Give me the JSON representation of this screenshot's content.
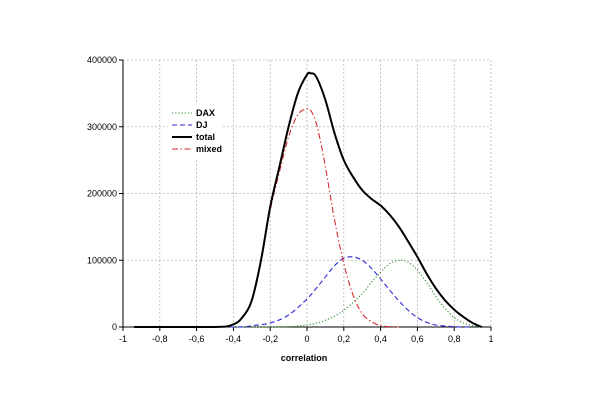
{
  "chart_data": {
    "type": "line",
    "title": "",
    "xlabel": "correlation",
    "ylabel": "",
    "xlim": [
      -1,
      1
    ],
    "ylim": [
      0,
      400000
    ],
    "x_ticks": [
      -1,
      -0.8,
      -0.6,
      -0.4,
      -0.2,
      0,
      0.2,
      0.4,
      0.6,
      0.8,
      1
    ],
    "x_tick_labels": [
      "-1",
      "-0,8",
      "-0,6",
      "-0,4",
      "-0,2",
      "0",
      "0,2",
      "0,4",
      "0,6",
      "0,8",
      "1"
    ],
    "y_ticks": [
      0,
      100000,
      200000,
      300000,
      400000
    ],
    "y_tick_labels": [
      "0",
      "100000",
      "200000",
      "300000",
      "400000"
    ],
    "grid": true,
    "legend_position": "upper-left",
    "series": [
      {
        "name": "DAX",
        "color": "#2e8b2e",
        "style": "dotted",
        "x": [
          -0.94,
          -0.2,
          -0.1,
          0.0,
          0.1,
          0.2,
          0.3,
          0.35,
          0.4,
          0.45,
          0.5,
          0.55,
          0.6,
          0.65,
          0.7,
          0.75,
          0.8,
          0.85,
          0.9,
          0.94
        ],
        "y": [
          0,
          0,
          500,
          3000,
          10000,
          25000,
          50000,
          67000,
          82000,
          95000,
          100000,
          97000,
          85000,
          67000,
          46000,
          28000,
          14000,
          6000,
          2000,
          0
        ]
      },
      {
        "name": "DJ",
        "color": "#2b2bd6",
        "style": "dashed",
        "x": [
          -0.94,
          -0.4,
          -0.3,
          -0.2,
          -0.1,
          0.0,
          0.05,
          0.1,
          0.15,
          0.2,
          0.25,
          0.3,
          0.35,
          0.4,
          0.45,
          0.5,
          0.55,
          0.6,
          0.65,
          0.7,
          0.8,
          0.9
        ],
        "y": [
          0,
          0,
          2000,
          6000,
          18000,
          42000,
          58000,
          75000,
          92000,
          103000,
          105000,
          100000,
          88000,
          72000,
          55000,
          39000,
          25000,
          14000,
          7000,
          3000,
          500,
          0
        ]
      },
      {
        "name": "total",
        "color": "#000000",
        "style": "solid",
        "x": [
          -0.94,
          -0.5,
          -0.4,
          -0.35,
          -0.3,
          -0.25,
          -0.2,
          -0.15,
          -0.1,
          -0.05,
          0.0,
          0.02,
          0.05,
          0.1,
          0.15,
          0.2,
          0.25,
          0.3,
          0.35,
          0.4,
          0.45,
          0.5,
          0.55,
          0.6,
          0.65,
          0.7,
          0.75,
          0.8,
          0.85,
          0.9,
          0.95
        ],
        "y": [
          0,
          0,
          4000,
          15000,
          40000,
          100000,
          180000,
          240000,
          300000,
          350000,
          378000,
          380000,
          375000,
          340000,
          290000,
          250000,
          225000,
          205000,
          192000,
          182000,
          168000,
          150000,
          128000,
          105000,
          80000,
          58000,
          40000,
          26000,
          15000,
          6000,
          0
        ]
      },
      {
        "name": "mixed",
        "color": "#d62b2b",
        "style": "dashdot",
        "x": [
          -0.94,
          -0.5,
          -0.4,
          -0.35,
          -0.3,
          -0.25,
          -0.2,
          -0.15,
          -0.1,
          -0.05,
          0.0,
          0.03,
          0.06,
          0.1,
          0.15,
          0.2,
          0.25,
          0.3,
          0.35,
          0.4,
          0.45,
          0.5
        ],
        "y": [
          0,
          0,
          4000,
          15000,
          40000,
          98000,
          175000,
          232000,
          285000,
          318000,
          327000,
          320000,
          295000,
          240000,
          160000,
          95000,
          48000,
          20000,
          8000,
          2000,
          500,
          0
        ]
      }
    ]
  }
}
